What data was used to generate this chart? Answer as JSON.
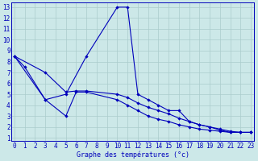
{
  "title": "Graphe des températures (°c)",
  "bg_color": "#cce8e8",
  "grid_color": "#aacccc",
  "line_color": "#0000bb",
  "xlim_min": -0.3,
  "xlim_max": 23.3,
  "ylim_min": 0.7,
  "ylim_max": 13.4,
  "xticks": [
    0,
    1,
    2,
    3,
    4,
    5,
    6,
    7,
    8,
    9,
    10,
    11,
    12,
    13,
    14,
    15,
    16,
    17,
    18,
    19,
    20,
    21,
    22,
    23
  ],
  "yticks": [
    1,
    2,
    3,
    4,
    5,
    6,
    7,
    8,
    9,
    10,
    11,
    12,
    13
  ],
  "line1_x": [
    0,
    1,
    3,
    5,
    7,
    10,
    11,
    12,
    13,
    14,
    15,
    16,
    17,
    18,
    19,
    20,
    21,
    22,
    23
  ],
  "line1_y": [
    8.5,
    7.5,
    4.5,
    5.0,
    8.5,
    13.0,
    13.0,
    5.0,
    4.5,
    4.0,
    3.5,
    3.5,
    2.5,
    2.2,
    2.0,
    1.7,
    1.5,
    1.5,
    1.5
  ],
  "line2_x": [
    0,
    3,
    5,
    6,
    7,
    10,
    11,
    12,
    13,
    14,
    15,
    16,
    17,
    18,
    19,
    20,
    21,
    22,
    23
  ],
  "line2_y": [
    8.5,
    7.0,
    5.2,
    5.3,
    5.3,
    5.0,
    4.7,
    4.2,
    3.8,
    3.5,
    3.2,
    2.8,
    2.5,
    2.2,
    2.0,
    1.8,
    1.6,
    1.5,
    1.5
  ],
  "line3_x": [
    0,
    3,
    5,
    6,
    7,
    10,
    11,
    12,
    13,
    14,
    15,
    16,
    17,
    18,
    19,
    20,
    21,
    22,
    23
  ],
  "line3_y": [
    8.5,
    4.5,
    3.0,
    5.2,
    5.2,
    4.5,
    4.0,
    3.5,
    3.0,
    2.7,
    2.5,
    2.2,
    2.0,
    1.8,
    1.7,
    1.6,
    1.5,
    1.5,
    1.5
  ]
}
